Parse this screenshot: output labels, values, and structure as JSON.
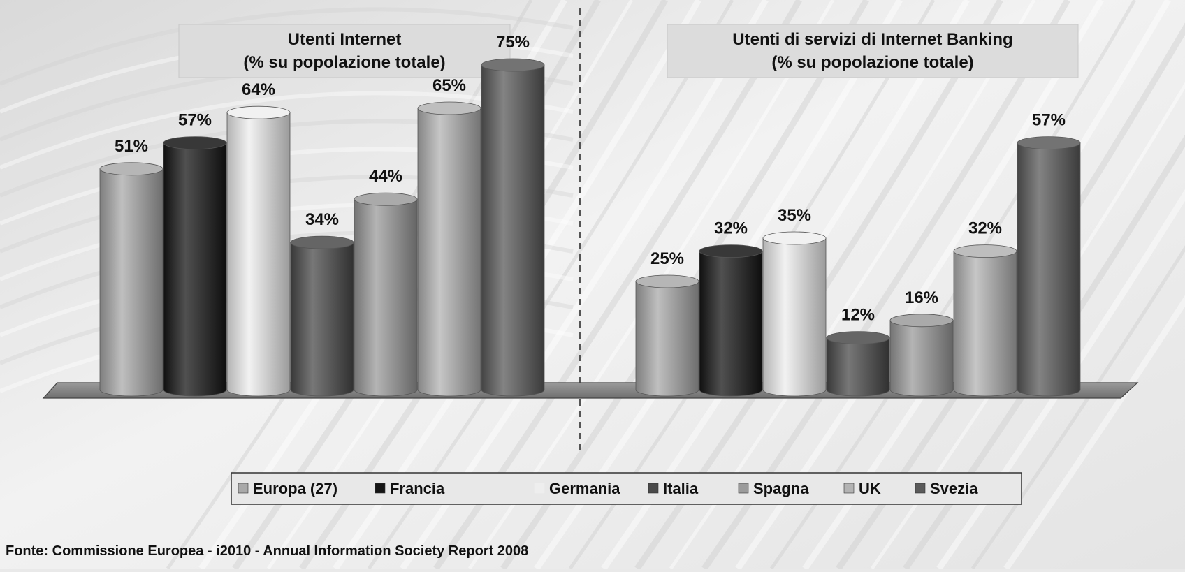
{
  "chart_data": [
    {
      "type": "bar",
      "title": "Utenti Internet",
      "subtitle": "(% su popolazione totale)",
      "categories": [
        "Europa (27)",
        "Francia",
        "Germania",
        "Italia",
        "Spagna",
        "UK",
        "Svezia"
      ],
      "values": [
        51,
        57,
        64,
        34,
        44,
        65,
        75
      ],
      "value_labels": [
        "51%",
        "57%",
        "64%",
        "34%",
        "44%",
        "65%",
        "75%"
      ],
      "ylim": [
        0,
        100
      ]
    },
    {
      "type": "bar",
      "title": "Utenti di servizi di Internet Banking",
      "subtitle": "(% su popolazione totale)",
      "categories": [
        "Europa (27)",
        "Francia",
        "Germania",
        "Italia",
        "Spagna",
        "UK",
        "Svezia"
      ],
      "values": [
        25,
        32,
        35,
        12,
        16,
        32,
        57
      ],
      "value_labels": [
        "25%",
        "32%",
        "35%",
        "12%",
        "16%",
        "32%",
        "57%"
      ],
      "ylim": [
        0,
        100
      ]
    }
  ],
  "legend": {
    "placement": "bottom-center",
    "items": [
      {
        "label": "Europa (27)",
        "color": "#a9a9a9"
      },
      {
        "label": "Francia",
        "color": "#151515"
      },
      {
        "label": "Germania",
        "color": "#eeeeee"
      },
      {
        "label": "Italia",
        "color": "#4a4a4a"
      },
      {
        "label": "Spagna",
        "color": "#9b9b9b"
      },
      {
        "label": "UK",
        "color": "#b3b3b3"
      },
      {
        "label": "Svezia",
        "color": "#5a5a5a"
      }
    ]
  },
  "source": "Fonte: Commissione Europea - i2010 - Annual Information Society Report 2008"
}
